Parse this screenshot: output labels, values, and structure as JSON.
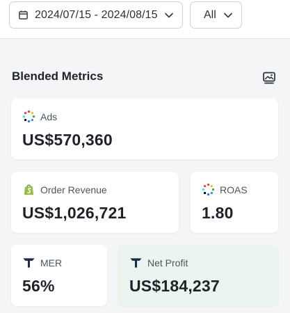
{
  "toolbar": {
    "date_range": "2024/07/15 - 2024/08/15",
    "filter_value": "All"
  },
  "section": {
    "title": "Blended Metrics"
  },
  "metrics": [
    {
      "label": "Ads",
      "value": "US$570,360",
      "icon": "ads-dots-icon"
    },
    {
      "label": "Order Revenue",
      "value": "US$1,026,721",
      "icon": "shopify-bag-icon"
    },
    {
      "label": "ROAS",
      "value": "1.80",
      "icon": "ads-dots-icon"
    },
    {
      "label": "MER",
      "value": "56%",
      "icon": "triple-whale-icon"
    },
    {
      "label": "Net Profit",
      "value": "US$184,237",
      "icon": "triple-whale-icon"
    }
  ],
  "colors": {
    "accent_green_card": "#eaf5f0",
    "shopify_green": "#95bf47",
    "brand_navy": "#1c2b4a"
  }
}
